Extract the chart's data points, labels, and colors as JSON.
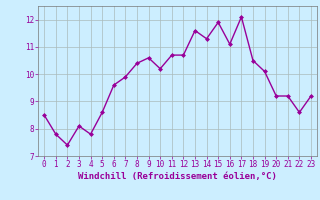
{
  "x": [
    0,
    1,
    2,
    3,
    4,
    5,
    6,
    7,
    8,
    9,
    10,
    11,
    12,
    13,
    14,
    15,
    16,
    17,
    18,
    19,
    20,
    21,
    22,
    23
  ],
  "y": [
    8.5,
    7.8,
    7.4,
    8.1,
    7.8,
    8.6,
    9.6,
    9.9,
    10.4,
    10.6,
    10.2,
    10.7,
    10.7,
    11.6,
    11.3,
    11.9,
    11.1,
    12.1,
    10.5,
    10.1,
    9.2,
    9.2,
    8.6,
    9.2
  ],
  "line_color": "#990099",
  "marker": "D",
  "marker_size": 2.0,
  "bg_color": "#cceeff",
  "grid_color": "#aabbbb",
  "xlabel": "Windchill (Refroidissement éolien,°C)",
  "ylabel": "",
  "ylim": [
    7,
    12.5
  ],
  "xlim": [
    -0.5,
    23.5
  ],
  "yticks": [
    7,
    8,
    9,
    10,
    11,
    12
  ],
  "xticks": [
    0,
    1,
    2,
    3,
    4,
    5,
    6,
    7,
    8,
    9,
    10,
    11,
    12,
    13,
    14,
    15,
    16,
    17,
    18,
    19,
    20,
    21,
    22,
    23
  ],
  "tick_label_color": "#990099",
  "tick_label_size": 5.5,
  "xlabel_size": 6.5,
  "line_width": 1.0
}
